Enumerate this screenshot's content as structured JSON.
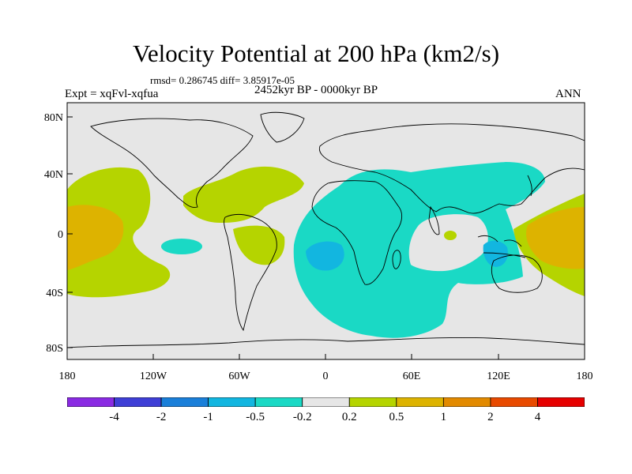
{
  "figure": {
    "title": "Velocity Potential at 200 hPa (km2/s)",
    "stats": "rmsd= 0.286745  diff= 3.85917e-05",
    "experiment": "Expt = xqFvl-xqfua",
    "period": "2452kyr BP - 0000kyr BP",
    "season": "ANN"
  },
  "map": {
    "projection": "cylindrical-equidistant",
    "lat_ticks": [
      "80N",
      "40N",
      "0",
      "40S",
      "80S"
    ],
    "lon_ticks": [
      "180",
      "120W",
      "60W",
      "0",
      "60E",
      "120E",
      "180"
    ],
    "ocean_color": "#e6e6e6"
  },
  "colorbar": {
    "labels": [
      "-4",
      "-2",
      "-1",
      "-0.5",
      "-0.2",
      "0.2",
      "0.5",
      "1",
      "2",
      "4"
    ],
    "colors": [
      "#8a2be2",
      "#3f3fd6",
      "#1a7fd9",
      "#12b6e0",
      "#1ad9c5",
      "#e6e6e6",
      "#b5d400",
      "#ddb300",
      "#e28a00",
      "#e84a00",
      "#e60000"
    ]
  },
  "chart_data": {
    "type": "heatmap",
    "title": "Velocity Potential at 200 hPa (km2/s)",
    "variable": "velocity potential anomaly (km2/s)",
    "levels": [
      -4,
      -2,
      -1,
      -0.5,
      -0.2,
      0.2,
      0.5,
      1,
      2,
      4
    ],
    "x_range": [
      -180,
      180
    ],
    "y_range": [
      -90,
      90
    ],
    "features": [
      {
        "region": "Central/Eastern Pacific",
        "bin": "0.2 to 0.5"
      },
      {
        "region": "Central Pacific near equator",
        "bin": "0.5 to 1"
      },
      {
        "region": "Caribbean / Tropical North Atlantic",
        "bin": "0.2 to 0.5"
      },
      {
        "region": "Northern South America",
        "bin": "0.2 to 0.5"
      },
      {
        "region": "Western Pacific warm pool",
        "bin": "0.5 to 1"
      },
      {
        "region": "Africa / Indian Ocean / Southern Ocean",
        "bin": "-0.5 to -0.2"
      },
      {
        "region": "Equatorial East Atlantic",
        "bin": "-1 to -0.5"
      },
      {
        "region": "Maritime Continent",
        "bin": "-1 to -0.5"
      },
      {
        "region": "Equatorial East Pacific",
        "bin": "-0.5 to -0.2"
      }
    ]
  }
}
